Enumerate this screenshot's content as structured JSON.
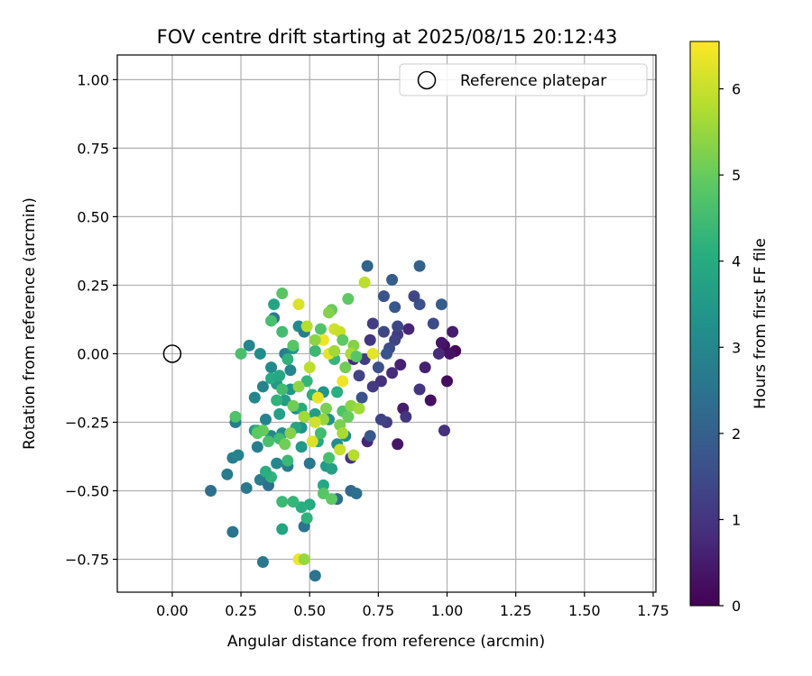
{
  "chart_data": {
    "type": "scatter",
    "title": "FOV centre drift starting at 2025/08/15 20:12:43",
    "xlabel": "Angular distance from reference (arcmin)",
    "ylabel": "Rotation from reference (arcmin)",
    "xlim": [
      -0.2,
      1.76
    ],
    "ylim": [
      -0.87,
      1.09
    ],
    "xticks": [
      "0.00",
      "0.25",
      "0.50",
      "0.75",
      "1.00",
      "1.25",
      "1.50",
      "1.75"
    ],
    "yticks": [
      "−0.75",
      "−0.50",
      "−0.25",
      "0.00",
      "0.25",
      "0.50",
      "0.75",
      "1.00"
    ],
    "xtick_values": [
      0,
      0.25,
      0.5,
      0.75,
      1.0,
      1.25,
      1.5,
      1.75
    ],
    "ytick_values": [
      -0.75,
      -0.5,
      -0.25,
      0,
      0.25,
      0.5,
      0.75,
      1.0
    ],
    "grid": true,
    "legend": {
      "position": "top-right",
      "label": "Reference platepar"
    },
    "reference_point": {
      "x": 0.0,
      "y": 0.0
    },
    "colorbar": {
      "label": "Hours from first FF file",
      "colormap": "viridis",
      "range": [
        0,
        6.55
      ],
      "ticks": [
        "0",
        "1",
        "2",
        "3",
        "4",
        "5",
        "6"
      ],
      "tick_values": [
        0,
        1,
        2,
        3,
        4,
        5,
        6
      ]
    },
    "points": [
      {
        "x": 1.03,
        "y": 0.01,
        "h": 0.1
      },
      {
        "x": 0.99,
        "y": 0.03,
        "h": 0.2
      },
      {
        "x": 1.01,
        "y": 0.0,
        "h": 0.3
      },
      {
        "x": 0.98,
        "y": 0.04,
        "h": 0.4
      },
      {
        "x": 1.02,
        "y": 0.08,
        "h": 0.5
      },
      {
        "x": 0.94,
        "y": -0.17,
        "h": 0.3
      },
      {
        "x": 1.0,
        "y": -0.1,
        "h": 0.2
      },
      {
        "x": 0.82,
        "y": -0.33,
        "h": 0.4
      },
      {
        "x": 0.99,
        "y": -0.28,
        "h": 0.9
      },
      {
        "x": 0.97,
        "y": 0.0,
        "h": 0.8
      },
      {
        "x": 0.92,
        "y": -0.05,
        "h": 0.6
      },
      {
        "x": 0.9,
        "y": -0.13,
        "h": 1.0
      },
      {
        "x": 0.86,
        "y": 0.09,
        "h": 0.7
      },
      {
        "x": 0.82,
        "y": 0.07,
        "h": 1.1
      },
      {
        "x": 0.84,
        "y": -0.2,
        "h": 0.5
      },
      {
        "x": 0.85,
        "y": -0.23,
        "h": 1.0
      },
      {
        "x": 0.8,
        "y": -0.07,
        "h": 0.8
      },
      {
        "x": 0.83,
        "y": -0.04,
        "h": 0.6
      },
      {
        "x": 0.81,
        "y": 0.05,
        "h": 1.3
      },
      {
        "x": 0.79,
        "y": 0.02,
        "h": 1.5
      },
      {
        "x": 0.77,
        "y": 0.08,
        "h": 1.4
      },
      {
        "x": 0.76,
        "y": -0.1,
        "h": 0.9
      },
      {
        "x": 0.78,
        "y": -0.25,
        "h": 1.2
      },
      {
        "x": 0.71,
        "y": -0.32,
        "h": 0.7
      },
      {
        "x": 0.73,
        "y": -0.12,
        "h": 1.1
      },
      {
        "x": 0.72,
        "y": 0.05,
        "h": 1.0
      },
      {
        "x": 0.75,
        "y": -0.05,
        "h": 1.6
      },
      {
        "x": 0.68,
        "y": -0.08,
        "h": 1.3
      },
      {
        "x": 0.7,
        "y": -0.02,
        "h": 1.2
      },
      {
        "x": 0.66,
        "y": -0.02,
        "h": 0.8
      },
      {
        "x": 0.69,
        "y": -0.16,
        "h": 1.7
      },
      {
        "x": 0.65,
        "y": -0.38,
        "h": 0.9
      },
      {
        "x": 0.72,
        "y": -0.3,
        "h": 1.8
      },
      {
        "x": 0.95,
        "y": 0.11,
        "h": 1.5
      },
      {
        "x": 0.98,
        "y": 0.18,
        "h": 1.9
      },
      {
        "x": 0.9,
        "y": 0.18,
        "h": 1.6
      },
      {
        "x": 0.88,
        "y": 0.21,
        "h": 1.4
      },
      {
        "x": 0.77,
        "y": 0.21,
        "h": 1.7
      },
      {
        "x": 0.8,
        "y": 0.27,
        "h": 1.9
      },
      {
        "x": 0.9,
        "y": 0.32,
        "h": 2.0
      },
      {
        "x": 0.71,
        "y": 0.32,
        "h": 2.1
      },
      {
        "x": 0.81,
        "y": 0.17,
        "h": 1.8
      },
      {
        "x": 0.73,
        "y": 0.11,
        "h": 1.2
      },
      {
        "x": 0.78,
        "y": 0.0,
        "h": 1.7
      },
      {
        "x": 0.76,
        "y": -0.24,
        "h": 1.3
      },
      {
        "x": 0.82,
        "y": 0.1,
        "h": 1.4
      },
      {
        "x": 0.65,
        "y": -0.5,
        "h": 2.2
      },
      {
        "x": 0.67,
        "y": -0.51,
        "h": 2.4
      },
      {
        "x": 0.6,
        "y": -0.53,
        "h": 2.3
      },
      {
        "x": 0.52,
        "y": -0.81,
        "h": 2.5
      },
      {
        "x": 0.33,
        "y": -0.76,
        "h": 2.6
      },
      {
        "x": 0.22,
        "y": -0.65,
        "h": 2.5
      },
      {
        "x": 0.14,
        "y": -0.5,
        "h": 2.4
      },
      {
        "x": 0.2,
        "y": -0.44,
        "h": 2.7
      },
      {
        "x": 0.27,
        "y": -0.49,
        "h": 2.6
      },
      {
        "x": 0.22,
        "y": -0.38,
        "h": 2.8
      },
      {
        "x": 0.24,
        "y": -0.37,
        "h": 2.9
      },
      {
        "x": 0.23,
        "y": -0.25,
        "h": 2.7
      },
      {
        "x": 0.31,
        "y": -0.34,
        "h": 2.8
      },
      {
        "x": 0.3,
        "y": -0.16,
        "h": 3.0
      },
      {
        "x": 0.33,
        "y": -0.12,
        "h": 2.9
      },
      {
        "x": 0.36,
        "y": -0.05,
        "h": 3.1
      },
      {
        "x": 0.28,
        "y": 0.03,
        "h": 3.0
      },
      {
        "x": 0.32,
        "y": 0.0,
        "h": 3.2
      },
      {
        "x": 0.37,
        "y": 0.13,
        "h": 2.6
      },
      {
        "x": 0.41,
        "y": 0.0,
        "h": 2.8
      },
      {
        "x": 0.43,
        "y": -0.06,
        "h": 3.0
      },
      {
        "x": 0.46,
        "y": 0.1,
        "h": 3.1
      },
      {
        "x": 0.48,
        "y": 0.08,
        "h": 2.7
      },
      {
        "x": 0.45,
        "y": -0.2,
        "h": 2.9
      },
      {
        "x": 0.4,
        "y": -0.29,
        "h": 3.2
      },
      {
        "x": 0.38,
        "y": -0.4,
        "h": 3.0
      },
      {
        "x": 0.42,
        "y": -0.41,
        "h": 2.8
      },
      {
        "x": 0.48,
        "y": -0.63,
        "h": 2.5
      },
      {
        "x": 0.5,
        "y": -0.4,
        "h": 2.6
      },
      {
        "x": 0.47,
        "y": -0.27,
        "h": 3.3
      },
      {
        "x": 0.34,
        "y": -0.24,
        "h": 2.9
      },
      {
        "x": 0.36,
        "y": -0.3,
        "h": 3.1
      },
      {
        "x": 0.32,
        "y": -0.46,
        "h": 2.7
      },
      {
        "x": 0.35,
        "y": -0.48,
        "h": 2.4
      },
      {
        "x": 0.3,
        "y": -0.28,
        "h": 3.3
      },
      {
        "x": 0.44,
        "y": 0.02,
        "h": 3.4
      },
      {
        "x": 0.38,
        "y": -0.11,
        "h": 3.5
      },
      {
        "x": 0.41,
        "y": -0.17,
        "h": 3.6
      },
      {
        "x": 0.39,
        "y": -0.22,
        "h": 3.7
      },
      {
        "x": 0.43,
        "y": -0.13,
        "h": 3.4
      },
      {
        "x": 0.45,
        "y": -0.27,
        "h": 3.8
      },
      {
        "x": 0.47,
        "y": -0.34,
        "h": 3.5
      },
      {
        "x": 0.53,
        "y": -0.32,
        "h": 3.9
      },
      {
        "x": 0.52,
        "y": -0.22,
        "h": 3.6
      },
      {
        "x": 0.55,
        "y": -0.14,
        "h": 3.4
      },
      {
        "x": 0.57,
        "y": -0.24,
        "h": 3.3
      },
      {
        "x": 0.6,
        "y": -0.33,
        "h": 3.2
      },
      {
        "x": 0.63,
        "y": -0.3,
        "h": 3.1
      },
      {
        "x": 0.56,
        "y": -0.41,
        "h": 3.5
      },
      {
        "x": 0.58,
        "y": -0.42,
        "h": 3.7
      },
      {
        "x": 0.55,
        "y": -0.48,
        "h": 3.9
      },
      {
        "x": 0.5,
        "y": -0.55,
        "h": 4.0
      },
      {
        "x": 0.47,
        "y": -0.56,
        "h": 4.1
      },
      {
        "x": 0.4,
        "y": -0.64,
        "h": 3.8
      },
      {
        "x": 0.49,
        "y": -0.6,
        "h": 4.2
      },
      {
        "x": 0.44,
        "y": -0.54,
        "h": 4.3
      },
      {
        "x": 0.4,
        "y": -0.54,
        "h": 4.4
      },
      {
        "x": 0.36,
        "y": -0.45,
        "h": 4.2
      },
      {
        "x": 0.34,
        "y": -0.43,
        "h": 4.1
      },
      {
        "x": 0.42,
        "y": -0.39,
        "h": 4.4
      },
      {
        "x": 0.39,
        "y": -0.31,
        "h": 4.5
      },
      {
        "x": 0.35,
        "y": -0.32,
        "h": 4.6
      },
      {
        "x": 0.31,
        "y": -0.28,
        "h": 4.3
      },
      {
        "x": 0.25,
        "y": 0.0,
        "h": 4.6
      },
      {
        "x": 0.23,
        "y": -0.23,
        "h": 4.7
      },
      {
        "x": 0.36,
        "y": -0.09,
        "h": 4.0
      },
      {
        "x": 0.39,
        "y": -0.08,
        "h": 3.9
      },
      {
        "x": 0.42,
        "y": -0.02,
        "h": 4.2
      },
      {
        "x": 0.44,
        "y": 0.03,
        "h": 4.8
      },
      {
        "x": 0.4,
        "y": 0.08,
        "h": 4.5
      },
      {
        "x": 0.4,
        "y": 0.22,
        "h": 4.8
      },
      {
        "x": 0.37,
        "y": 0.18,
        "h": 3.8
      },
      {
        "x": 0.36,
        "y": 0.12,
        "h": 4.6
      },
      {
        "x": 0.47,
        "y": -0.2,
        "h": 4.0
      },
      {
        "x": 0.49,
        "y": -0.1,
        "h": 4.3
      },
      {
        "x": 0.51,
        "y": -0.15,
        "h": 4.1
      },
      {
        "x": 0.52,
        "y": 0.01,
        "h": 4.4
      },
      {
        "x": 0.54,
        "y": 0.09,
        "h": 4.7
      },
      {
        "x": 0.54,
        "y": -0.29,
        "h": 4.5
      },
      {
        "x": 0.55,
        "y": -0.51,
        "h": 4.8
      },
      {
        "x": 0.57,
        "y": -0.38,
        "h": 4.6
      },
      {
        "x": 0.58,
        "y": -0.53,
        "h": 4.9
      },
      {
        "x": 0.59,
        "y": -0.02,
        "h": 4.3
      },
      {
        "x": 0.6,
        "y": -0.14,
        "h": 4.1
      },
      {
        "x": 0.62,
        "y": -0.21,
        "h": 4.7
      },
      {
        "x": 0.64,
        "y": 0.2,
        "h": 4.9
      },
      {
        "x": 0.58,
        "y": 0.16,
        "h": 5.0
      },
      {
        "x": 0.63,
        "y": -0.05,
        "h": 5.1
      },
      {
        "x": 0.66,
        "y": 0.03,
        "h": 5.3
      },
      {
        "x": 0.64,
        "y": -0.23,
        "h": 5.0
      },
      {
        "x": 0.61,
        "y": -0.26,
        "h": 5.2
      },
      {
        "x": 0.65,
        "y": -0.19,
        "h": 5.4
      },
      {
        "x": 0.68,
        "y": -0.2,
        "h": 5.6
      },
      {
        "x": 0.66,
        "y": -0.37,
        "h": 5.8
      },
      {
        "x": 0.62,
        "y": -0.29,
        "h": 5.7
      },
      {
        "x": 0.61,
        "y": -0.35,
        "h": 6.0
      },
      {
        "x": 0.56,
        "y": -0.2,
        "h": 5.2
      },
      {
        "x": 0.55,
        "y": -0.24,
        "h": 5.5
      },
      {
        "x": 0.52,
        "y": -0.25,
        "h": 6.1
      },
      {
        "x": 0.51,
        "y": -0.32,
        "h": 6.2
      },
      {
        "x": 0.5,
        "y": -0.05,
        "h": 5.9
      },
      {
        "x": 0.49,
        "y": 0.1,
        "h": 5.8
      },
      {
        "x": 0.46,
        "y": 0.18,
        "h": 6.2
      },
      {
        "x": 0.53,
        "y": -0.16,
        "h": 6.3
      },
      {
        "x": 0.55,
        "y": 0.05,
        "h": 6.4
      },
      {
        "x": 0.57,
        "y": 0.0,
        "h": 6.3
      },
      {
        "x": 0.59,
        "y": 0.09,
        "h": 6.1
      },
      {
        "x": 0.61,
        "y": 0.08,
        "h": 6.0
      },
      {
        "x": 0.62,
        "y": -0.1,
        "h": 6.4
      },
      {
        "x": 0.7,
        "y": 0.26,
        "h": 5.9
      },
      {
        "x": 0.73,
        "y": 0.0,
        "h": 6.3
      },
      {
        "x": 0.46,
        "y": -0.75,
        "h": 6.4
      },
      {
        "x": 0.48,
        "y": -0.75,
        "h": 5.5
      },
      {
        "x": 0.43,
        "y": -0.29,
        "h": 5.3
      },
      {
        "x": 0.41,
        "y": -0.33,
        "h": 5.1
      },
      {
        "x": 0.33,
        "y": -0.28,
        "h": 5.0
      },
      {
        "x": 0.31,
        "y": -0.29,
        "h": 4.9
      },
      {
        "x": 0.57,
        "y": 0.15,
        "h": 5.3
      },
      {
        "x": 0.59,
        "y": 0.01,
        "h": 5.6
      },
      {
        "x": 0.65,
        "y": 0.0,
        "h": 5.7
      },
      {
        "x": 0.52,
        "y": 0.05,
        "h": 5.4
      },
      {
        "x": 0.44,
        "y": -0.19,
        "h": 5.1
      },
      {
        "x": 0.46,
        "y": -0.12,
        "h": 5.4
      },
      {
        "x": 0.48,
        "y": -0.23,
        "h": 5.6
      },
      {
        "x": 0.67,
        "y": -0.01,
        "h": 4.8
      },
      {
        "x": 0.62,
        "y": 0.05,
        "h": 4.9
      },
      {
        "x": 0.38,
        "y": -0.17,
        "h": 4.2
      },
      {
        "x": 0.4,
        "y": -0.13,
        "h": 4.5
      }
    ]
  }
}
